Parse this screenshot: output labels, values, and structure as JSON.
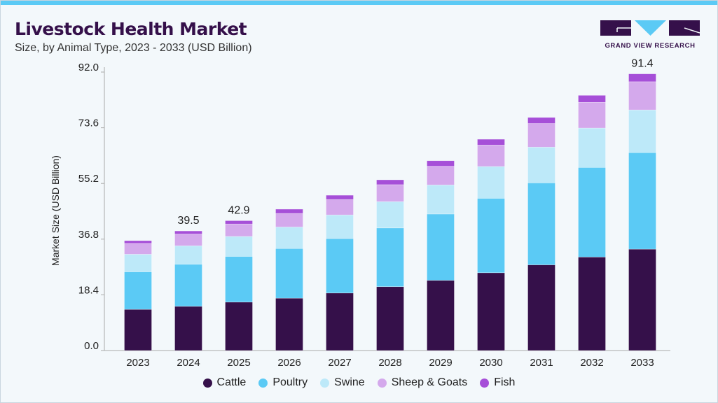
{
  "title": "Livestock Health Market",
  "subtitle": "Size, by Animal Type, 2023 - 2033 (USD Billion)",
  "logo": {
    "text": "GRAND VIEW RESEARCH",
    "colors": {
      "dark": "#35104a",
      "accent": "#5bcaf5"
    }
  },
  "chart_data": {
    "type": "bar",
    "stacked": true,
    "title": "Livestock Health Market",
    "subtitle": "Size, by Animal Type, 2023 - 2033 (USD Billion)",
    "xlabel": "",
    "ylabel": "Market Size (USD Billion)",
    "ylim": [
      0,
      92
    ],
    "yticks": [
      "0.0",
      "18.4",
      "36.8",
      "55.2",
      "73.6",
      "92.0"
    ],
    "grid": false,
    "legend": "bottom",
    "categories": [
      "2023",
      "2024",
      "2025",
      "2026",
      "2027",
      "2028",
      "2029",
      "2030",
      "2031",
      "2032",
      "2033"
    ],
    "series": [
      {
        "name": "Cattle",
        "color": "#35104a",
        "values": [
          13.6,
          14.6,
          16.0,
          17.3,
          19.0,
          21.1,
          23.2,
          25.7,
          28.3,
          30.9,
          33.5
        ]
      },
      {
        "name": "Poultry",
        "color": "#5bcaf5",
        "values": [
          12.4,
          13.9,
          15.1,
          16.4,
          18.0,
          19.4,
          21.9,
          24.6,
          27.1,
          29.6,
          31.9
        ]
      },
      {
        "name": "Swine",
        "color": "#bde9f9",
        "values": [
          5.8,
          6.1,
          6.6,
          7.1,
          7.8,
          8.7,
          9.6,
          10.5,
          11.8,
          13.0,
          14.1
        ]
      },
      {
        "name": "Sheep & Goats",
        "color": "#d4a9ec",
        "values": [
          3.6,
          3.9,
          4.1,
          4.5,
          5.1,
          5.6,
          6.2,
          7.1,
          7.8,
          8.5,
          9.3
        ]
      },
      {
        "name": "Fish",
        "color": "#a64fd8",
        "values": [
          0.9,
          1.0,
          1.1,
          1.4,
          1.4,
          1.6,
          1.8,
          1.9,
          2.0,
          2.3,
          2.6
        ]
      }
    ],
    "data_labels": [
      {
        "category": "2024",
        "text": "39.5"
      },
      {
        "category": "2025",
        "text": "42.9"
      },
      {
        "category": "2033",
        "text": "91.4"
      }
    ]
  }
}
